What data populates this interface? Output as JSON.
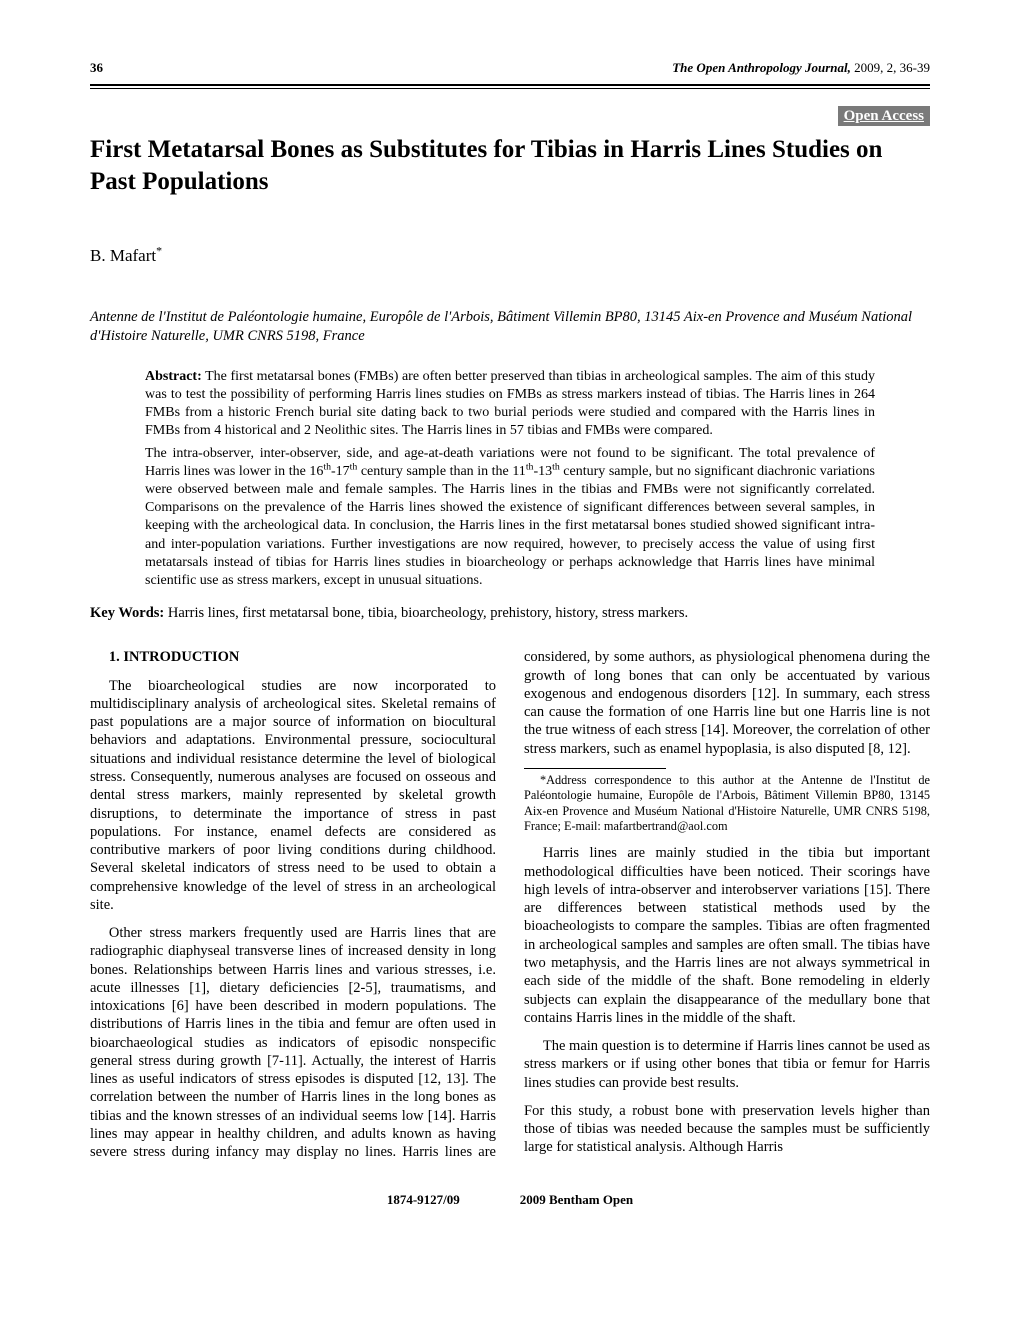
{
  "header": {
    "page_number": "36",
    "journal_name": "The Open Anthropology Journal,",
    "journal_issue": " 2009, 2, 36-39"
  },
  "open_access_label": "Open Access",
  "title": "First Metatarsal Bones as Substitutes for Tibias in Harris Lines Studies on Past Populations",
  "author": "B. Mafart",
  "author_marker": "*",
  "affiliation": "Antenne de l'Institut de Paléontologie humaine, Europôle de l'Arbois, Bâtiment Villemin BP80, 13145 Aix-en Provence and Muséum National d'Histoire Naturelle, UMR CNRS 5198, France",
  "abstract": {
    "label": "Abstract:",
    "para1": " The first metatarsal bones (FMBs) are often better preserved than tibias in archeological samples. The aim of this study was to test the possibility of performing Harris lines studies on FMBs as stress markers instead of tibias. The Harris lines in 264 FMBs from a historic French burial site dating back to two burial periods were studied and compared with the Harris lines in FMBs from 4 historical and 2 Neolithic sites. The Harris lines in 57 tibias and FMBs were compared.",
    "para2_a": "The intra-observer, inter-observer, side, and age-at-death variations were not found to be significant. The total prevalence of Harris lines was lower in the 16",
    "para2_b": "-17",
    "para2_c": " century sample than in the 11",
    "para2_d": "-13",
    "para2_e": " century sample, but no significant diachronic variations were observed between male and female samples. The Harris lines in the tibias and FMBs were not significantly correlated. Comparisons on the prevalence of the Harris lines showed the existence of significant differences between several samples, in keeping with the archeological data. In conclusion, the Harris lines in the first metatarsal bones studied showed significant intra- and inter-population variations. Further investigations are now required, however, to precisely access the value of using first metatarsals instead of tibias for Harris lines studies in bioarcheology or perhaps acknowledge that Harris lines have minimal scientific use as stress markers, except in unusual situations.",
    "sup_th": "th"
  },
  "keywords": {
    "label": "Key Words:",
    "text": " Harris lines, first metatarsal bone, tibia, bioarcheology, prehistory, history, stress markers."
  },
  "section_heading": "1. INTRODUCTION",
  "body": {
    "p1": "The bioarcheological studies are now incorporated to multidisciplinary analysis of archeological sites. Skeletal remains of past populations are a major source of information on biocultural behaviors and adaptations. Environmental pressure, sociocultural situations and individual resistance determine the level of biological stress. Consequently, numerous analyses are focused on osseous and dental stress markers, mainly represented by skeletal growth disruptions, to determinate the importance of stress in past populations. For instance, enamel defects are considered as contributive markers of poor living conditions during childhood. Several skeletal indicators of stress need to be used to obtain a comprehensive knowledge of the level of stress in an archeological site.",
    "p2": "Other stress markers frequently used are Harris lines that are radiographic diaphyseal transverse lines of increased density in long bones. Relationships between Harris lines and various stresses, i.e. acute illnesses [1], dietary deficiencies [2-5], traumatisms, and intoxications [6] have been described in modern populations. The distributions of Harris lines in the tibia and femur are often used in bioarchaeological studies as indicators of episodic nonspecific general stress during growth [7-11]. Actually, the interest of Harris lines as useful indicators of stress episodes is disputed [12, 13]. The correlation between the number of Harris lines in the long bones as tibias and the known stresses of an individual seems low [14]. Harris lines may appear in healthy children, and adults known as having severe stress during infancy may display no lines. Harris lines are considered, by some authors, as physiological phenomena during the growth of long bones that can only be accentuated by various exogenous and endogenous disorders [12]. In summary, each stress can cause the formation of one Harris line but one Harris line is not the true witness of each stress [14]. Moreover, the correlation of other stress markers, such as enamel hypoplasia, is also disputed [8, 12].",
    "p3": "Harris lines are mainly studied in the tibia but important methodological difficulties have been noticed. Their scorings have high levels of intra-observer and interobserver variations [15]. There are differences between statistical methods used by the bioacheologists to compare the samples. Tibias are often fragmented in archeological samples and samples are often small. The tibias have two metaphysis, and the Harris lines are not always symmetrical in each side of the middle of the shaft. Bone remodeling in elderly subjects can explain the disappearance of the medullary bone that contains Harris lines in the middle of the shaft.",
    "p4": "The main question is to determine if Harris lines cannot be used as stress markers or if using other bones that tibia or femur for Harris lines studies can provide best results.",
    "p5": "For this study, a robust bone with preservation levels higher than those of tibias was needed because the samples must be sufficiently large for statistical analysis. Although Harris"
  },
  "footnote": "*Address correspondence to this author at the Antenne de l'Institut de Paléontologie humaine, Europôle de l'Arbois, Bâtiment Villemin BP80, 13145 Aix-en Provence and Muséum National d'Histoire Naturelle, UMR CNRS 5198, France; E-mail: mafartbertrand@aol.com",
  "footer": {
    "issn": "1874-9127/09",
    "copyright": "2009 Bentham Open"
  }
}
